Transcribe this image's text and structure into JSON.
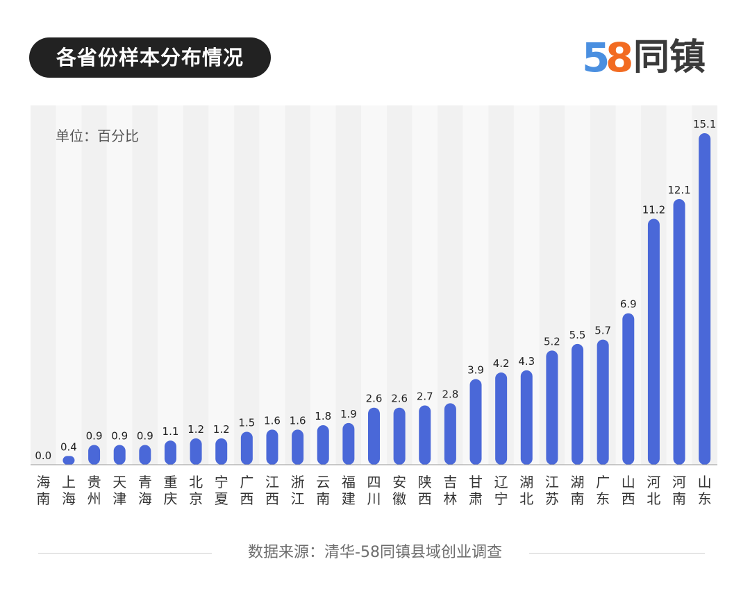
{
  "header": {
    "title": "各省份样本分布情况"
  },
  "logo": {
    "digit1": "5",
    "digit2": "8",
    "brand": "同镇"
  },
  "chart_data": {
    "type": "bar",
    "unit_label": "单位：百分比",
    "categories": [
      "海南",
      "上海",
      "贵州",
      "天津",
      "青海",
      "重庆",
      "北京",
      "宁夏",
      "广西",
      "江西",
      "浙江",
      "云南",
      "福建",
      "四川",
      "安徽",
      "陕西",
      "吉林",
      "甘肃",
      "辽宁",
      "湖北",
      "江苏",
      "湖南",
      "广东",
      "山西",
      "河北",
      "河南",
      "山东"
    ],
    "values": [
      0.0,
      0.4,
      0.9,
      0.9,
      0.9,
      1.1,
      1.2,
      1.2,
      1.5,
      1.6,
      1.6,
      1.8,
      1.9,
      2.6,
      2.6,
      2.7,
      2.8,
      3.9,
      4.2,
      4.3,
      5.2,
      5.5,
      5.7,
      6.9,
      11.2,
      12.1,
      15.1
    ],
    "value_labels": [
      "0.0",
      "0.4",
      "0.9",
      "0.9",
      "0.9",
      "1.1",
      "1.2",
      "1.2",
      "1.5",
      "1.6",
      "1.6",
      "1.8",
      "1.9",
      "2.6",
      "2.6",
      "2.7",
      "2.8",
      "3.9",
      "4.2",
      "4.3",
      "5.2",
      "5.5",
      "5.7",
      "6.9",
      "11.2",
      "12.1",
      "15.1"
    ],
    "ylim": [
      0,
      15.1
    ],
    "bar_color": "#4a68d8",
    "stripe_colors": [
      "#f1f1f1",
      "#f8f8f8"
    ],
    "grid": false
  },
  "footer": {
    "source": "数据来源：清华-58同镇县域创业调查"
  }
}
